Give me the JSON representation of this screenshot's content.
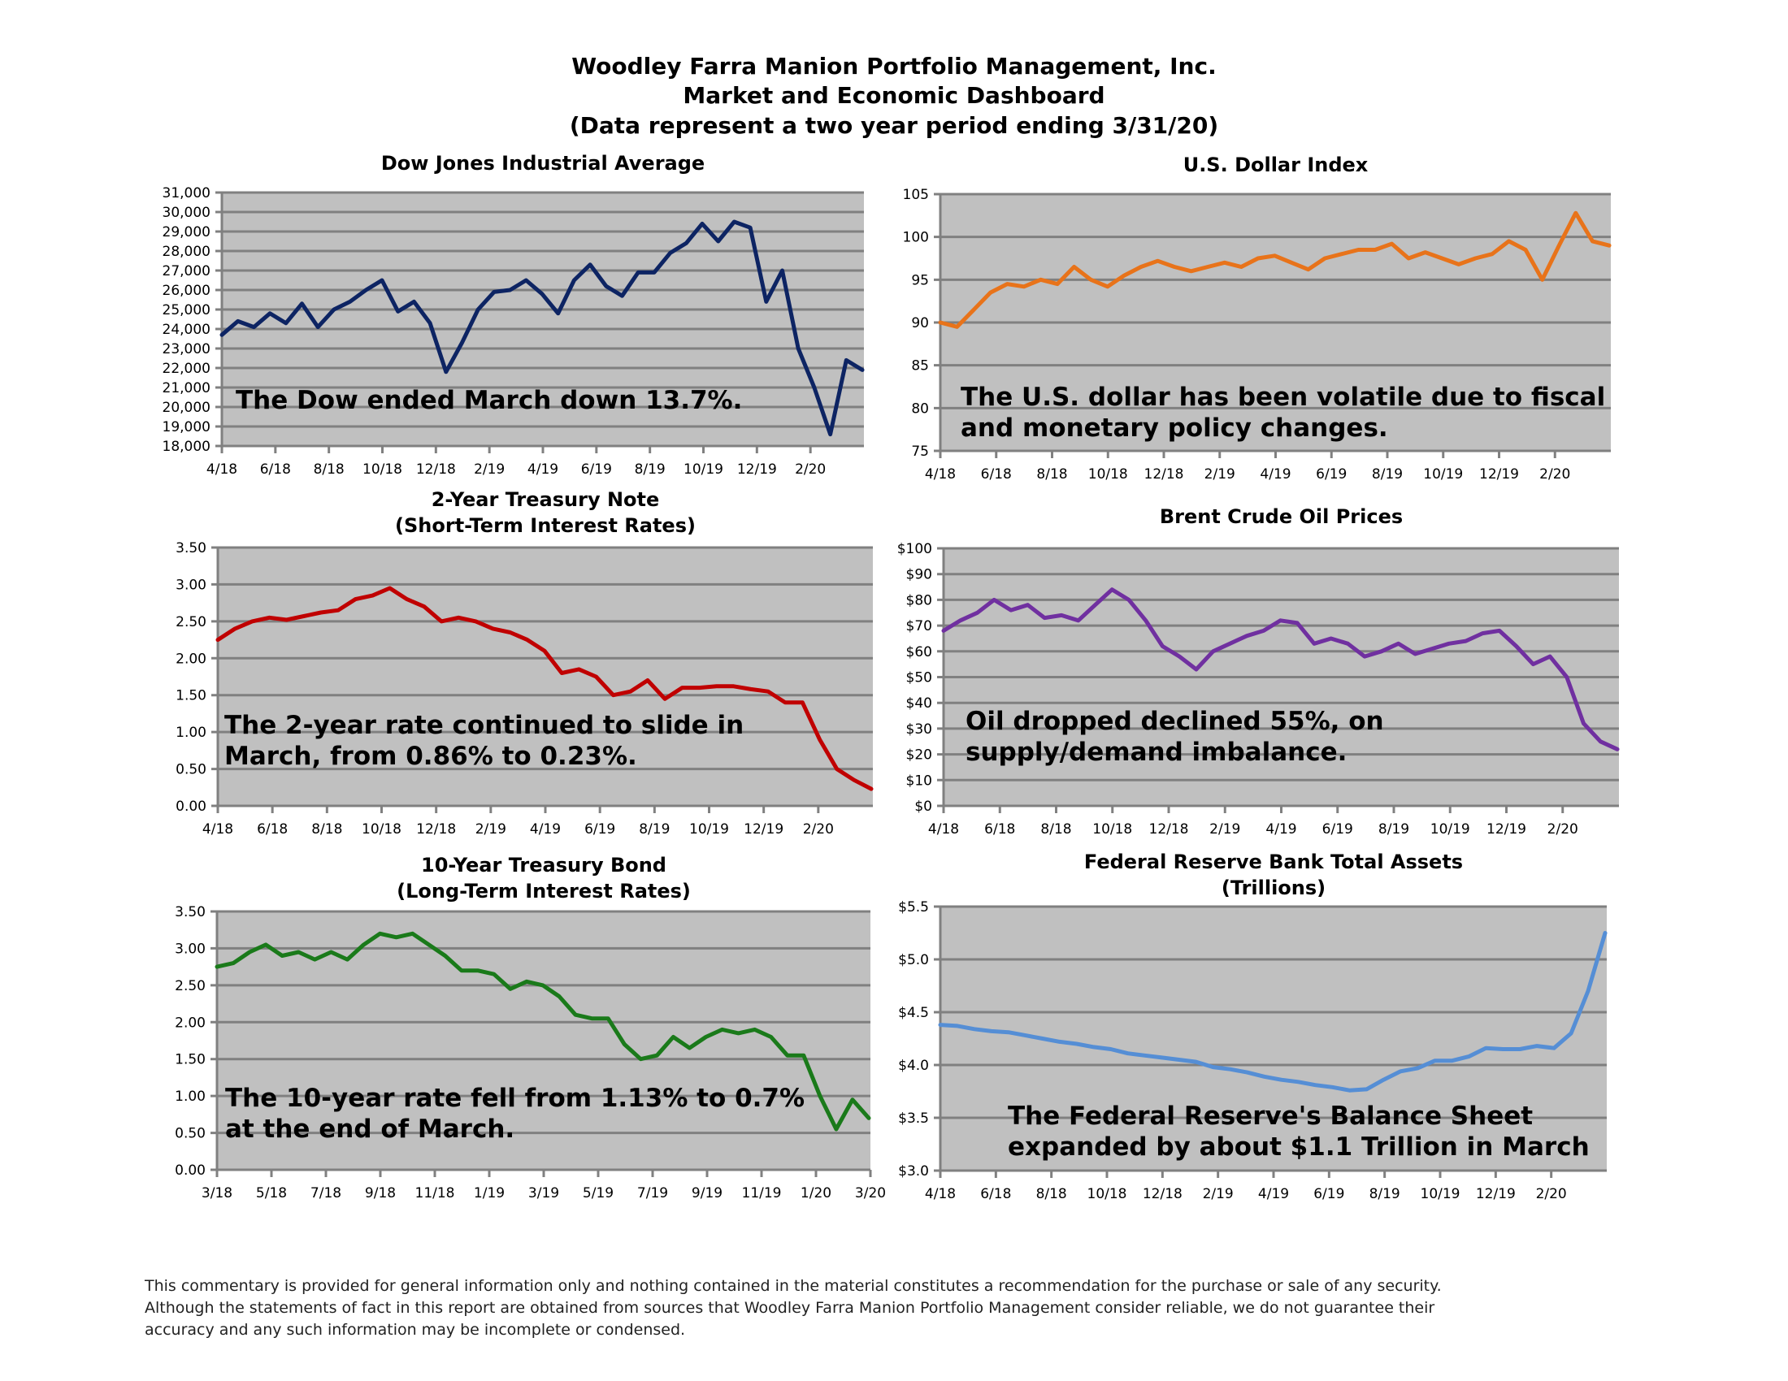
{
  "header": {
    "line1": "Woodley Farra Manion Portfolio Management, Inc.",
    "line2": "Market and Economic Dashboard",
    "line3": "(Data represent a two year period ending 3/31/20)"
  },
  "footer": {
    "line1": "This commentary is provided for general information only and nothing contained in the material constitutes a recommendation for the purchase or sale of any security.",
    "line2": "Although the statements of fact in this report are obtained from sources that Woodley Farra Manion Portfolio Management consider reliable, we do not guarantee their",
    "line3": "accuracy and any such information may be incomplete or condensed."
  },
  "chart_data": [
    {
      "id": "dow",
      "type": "line",
      "title": "Dow Jones Industrial Average",
      "subtitle": "",
      "color": "#0d2463",
      "xlabel": "",
      "ylabel": "",
      "ylim": [
        18000,
        31000
      ],
      "yticks": [
        18000,
        19000,
        20000,
        21000,
        22000,
        23000,
        24000,
        25000,
        26000,
        27000,
        28000,
        29000,
        30000,
        31000
      ],
      "ytick_labels": [
        "18,000",
        "19,000",
        "20,000",
        "21,000",
        "22,000",
        "23,000",
        "24,000",
        "25,000",
        "26,000",
        "27,000",
        "28,000",
        "29,000",
        "30,000",
        "31,000"
      ],
      "xticks": [
        "4/18",
        "6/18",
        "8/18",
        "10/18",
        "12/18",
        "2/19",
        "4/19",
        "6/19",
        "8/19",
        "10/19",
        "12/19",
        "2/20"
      ],
      "x_months": 24,
      "grid": true,
      "annotation": [
        "The Dow ended March down 13.7%."
      ],
      "values": [
        23700,
        24400,
        24100,
        24800,
        24300,
        25300,
        24100,
        25000,
        25400,
        26000,
        26500,
        24900,
        25400,
        24300,
        21800,
        23300,
        25000,
        25900,
        26000,
        26500,
        25800,
        24800,
        26500,
        27300,
        26200,
        25700,
        26900,
        26900,
        27900,
        28400,
        29400,
        28500,
        29500,
        29200,
        25400,
        27000,
        23000,
        21000,
        18600,
        22400,
        21900
      ]
    },
    {
      "id": "usd",
      "type": "line",
      "title": "U.S. Dollar Index",
      "subtitle": "",
      "color": "#e8731a",
      "ylim": [
        75,
        105
      ],
      "yticks": [
        75,
        80,
        85,
        90,
        95,
        100,
        105
      ],
      "ytick_labels": [
        "75",
        "80",
        "85",
        "90",
        "95",
        "100",
        "105"
      ],
      "xticks": [
        "4/18",
        "6/18",
        "8/18",
        "10/18",
        "12/18",
        "2/19",
        "4/19",
        "6/19",
        "8/19",
        "10/19",
        "12/19",
        "2/20"
      ],
      "x_months": 24,
      "grid": true,
      "annotation": [
        "The U.S. dollar has been volatile due to fiscal",
        "and monetary policy changes."
      ],
      "values": [
        90.0,
        89.5,
        91.5,
        93.5,
        94.5,
        94.2,
        95.0,
        94.5,
        96.5,
        95.0,
        94.2,
        95.5,
        96.5,
        97.2,
        96.5,
        96.0,
        96.5,
        97.0,
        96.5,
        97.5,
        97.8,
        97.0,
        96.2,
        97.5,
        98.0,
        98.5,
        98.5,
        99.2,
        97.5,
        98.2,
        97.5,
        96.8,
        97.5,
        98.0,
        99.5,
        98.5,
        95.0,
        99.0,
        102.8,
        99.5,
        99.0
      ]
    },
    {
      "id": "two-year",
      "type": "line",
      "title": "2-Year Treasury Note",
      "subtitle": "(Short-Term Interest Rates)",
      "color": "#c00000",
      "ylim": [
        0,
        3.5
      ],
      "yticks": [
        0,
        0.5,
        1.0,
        1.5,
        2.0,
        2.5,
        3.0,
        3.5
      ],
      "ytick_labels": [
        "0.00",
        "0.50",
        "1.00",
        "1.50",
        "2.00",
        "2.50",
        "3.00",
        "3.50"
      ],
      "xticks": [
        "4/18",
        "6/18",
        "8/18",
        "10/18",
        "12/18",
        "2/19",
        "4/19",
        "6/19",
        "8/19",
        "10/19",
        "12/19",
        "2/20"
      ],
      "x_months": 24,
      "grid": true,
      "annotation": [
        "The 2-year rate continued to slide in",
        "March, from 0.86% to 0.23%."
      ],
      "values": [
        2.25,
        2.4,
        2.5,
        2.55,
        2.52,
        2.57,
        2.62,
        2.65,
        2.8,
        2.85,
        2.95,
        2.8,
        2.7,
        2.5,
        2.55,
        2.5,
        2.4,
        2.35,
        2.25,
        2.1,
        1.8,
        1.85,
        1.75,
        1.5,
        1.55,
        1.7,
        1.45,
        1.6,
        1.6,
        1.62,
        1.62,
        1.58,
        1.55,
        1.4,
        1.4,
        0.9,
        0.5,
        0.35,
        0.23
      ]
    },
    {
      "id": "brent",
      "type": "line",
      "title": "Brent Crude Oil Prices",
      "subtitle": "",
      "color": "#7030a0",
      "ylim": [
        0,
        100
      ],
      "yticks": [
        0,
        10,
        20,
        30,
        40,
        50,
        60,
        70,
        80,
        90,
        100
      ],
      "ytick_labels": [
        "$0",
        "$10",
        "$20",
        "$30",
        "$40",
        "$50",
        "$60",
        "$70",
        "$80",
        "$90",
        "$100"
      ],
      "xticks": [
        "4/18",
        "6/18",
        "8/18",
        "10/18",
        "12/18",
        "2/19",
        "4/19",
        "6/19",
        "8/19",
        "10/19",
        "12/19",
        "2/20"
      ],
      "x_months": 24,
      "grid": true,
      "annotation": [
        "Oil dropped declined 55%, on",
        "supply/demand imbalance."
      ],
      "values": [
        68,
        72,
        75,
        80,
        76,
        78,
        73,
        74,
        72,
        78,
        84,
        80,
        72,
        62,
        58,
        53,
        60,
        63,
        66,
        68,
        72,
        71,
        63,
        65,
        63,
        58,
        60,
        63,
        59,
        61,
        63,
        64,
        67,
        68,
        62,
        55,
        58,
        50,
        32,
        25,
        22
      ]
    },
    {
      "id": "ten-year",
      "type": "line",
      "title": "10-Year Treasury Bond",
      "subtitle": "(Long-Term Interest Rates)",
      "color": "#1a7a1a",
      "ylim": [
        0,
        3.5
      ],
      "yticks": [
        0,
        0.5,
        1.0,
        1.5,
        2.0,
        2.5,
        3.0,
        3.5
      ],
      "ytick_labels": [
        "0.00",
        "0.50",
        "1.00",
        "1.50",
        "2.00",
        "2.50",
        "3.00",
        "3.50"
      ],
      "xticks": [
        "3/18",
        "5/18",
        "7/18",
        "9/18",
        "11/18",
        "1/19",
        "3/19",
        "5/19",
        "7/19",
        "9/19",
        "11/19",
        "1/20",
        "3/20"
      ],
      "x_months": 24,
      "grid": true,
      "annotation": [
        "The 10-year rate fell from 1.13% to 0.7%",
        "at the end of March."
      ],
      "values": [
        2.75,
        2.8,
        2.95,
        3.05,
        2.9,
        2.95,
        2.85,
        2.95,
        2.85,
        3.05,
        3.2,
        3.15,
        3.2,
        3.05,
        2.9,
        2.7,
        2.7,
        2.65,
        2.45,
        2.55,
        2.5,
        2.35,
        2.1,
        2.05,
        2.05,
        1.7,
        1.5,
        1.55,
        1.8,
        1.65,
        1.8,
        1.9,
        1.85,
        1.9,
        1.8,
        1.55,
        1.55,
        1.0,
        0.55,
        0.95,
        0.7
      ]
    },
    {
      "id": "fed",
      "type": "line",
      "title": "Federal Reserve Bank Total Assets",
      "subtitle": "(Trillions)",
      "color": "#558ed5",
      "ylim": [
        3.0,
        5.5
      ],
      "yticks": [
        3.0,
        3.5,
        4.0,
        4.5,
        5.0,
        5.5
      ],
      "ytick_labels": [
        "$3.0",
        "$3.5",
        "$4.0",
        "$4.5",
        "$5.0",
        "$5.5"
      ],
      "xticks": [
        "4/18",
        "6/18",
        "8/18",
        "10/18",
        "12/18",
        "2/19",
        "4/19",
        "6/19",
        "8/19",
        "10/19",
        "12/19",
        "2/20"
      ],
      "x_months": 24,
      "grid": true,
      "annotation": [
        "The Federal Reserve's Balance Sheet",
        "expanded by about $1.1 Trillion in March"
      ],
      "values": [
        4.38,
        4.37,
        4.34,
        4.32,
        4.31,
        4.28,
        4.25,
        4.22,
        4.2,
        4.17,
        4.15,
        4.11,
        4.09,
        4.07,
        4.05,
        4.03,
        3.98,
        3.96,
        3.93,
        3.89,
        3.86,
        3.84,
        3.81,
        3.79,
        3.76,
        3.77,
        3.86,
        3.94,
        3.97,
        4.04,
        4.04,
        4.08,
        4.16,
        4.15,
        4.15,
        4.18,
        4.16,
        4.3,
        4.7,
        5.25
      ]
    }
  ]
}
